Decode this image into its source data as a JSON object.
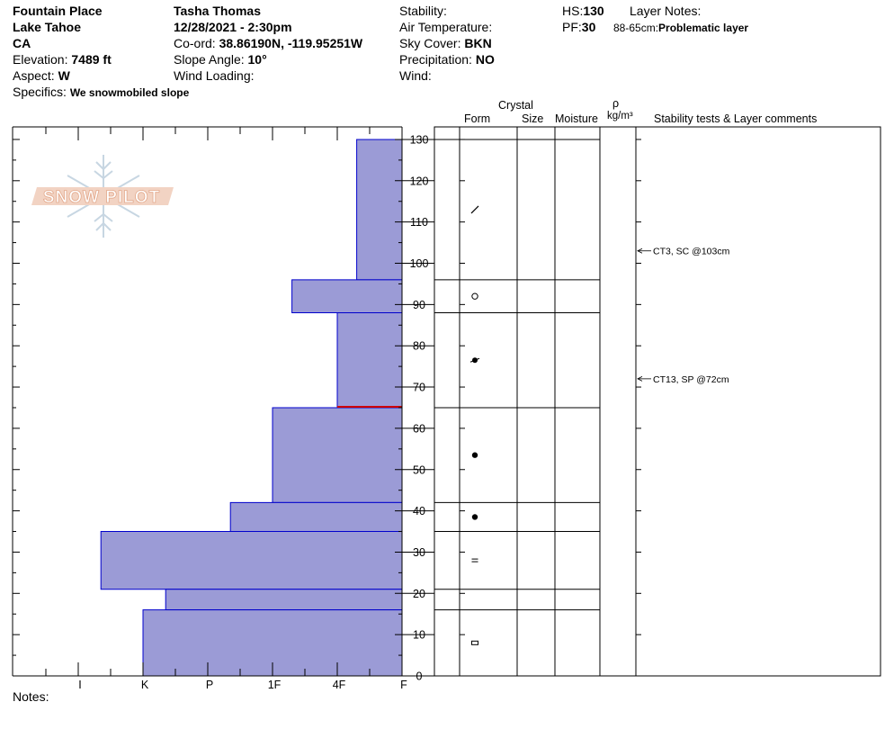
{
  "header": {
    "location": "Fountain Place",
    "region": "Lake Tahoe",
    "state": "CA",
    "elevation_label": "Elevation:",
    "elevation_value": "7489 ft",
    "aspect_label": "Aspect:",
    "aspect_value": "W",
    "specifics_label": "Specifics:",
    "specifics_value": "We snowmobiled slope",
    "observer": "Tasha Thomas",
    "datetime": "12/28/2021 - 2:30pm",
    "coord_label": "Co-ord:",
    "coord_value": "38.86190N, -119.95251W",
    "slope_label": "Slope Angle:",
    "slope_value": "10°",
    "wind_loading_label": "Wind Loading:",
    "stability_label": "Stability:",
    "air_temp_label": "Air Temperature:",
    "sky_label": "Sky Cover:",
    "sky_value": "BKN",
    "precip_label": "Precipitation:",
    "precip_value": "NO",
    "wind_label": "Wind:",
    "hs_label": "HS:",
    "hs_value": "130",
    "pf_label": "PF:",
    "pf_value": "30",
    "layer_notes_label": "Layer Notes:",
    "layer_note_range": "88-65cm:",
    "layer_note_text": "Problematic layer"
  },
  "logo_text": "SNOW PILOT",
  "notes_label": "Notes:",
  "columns": {
    "crystal": "Crystal",
    "form": "Form",
    "size": "Size",
    "moisture": "Moisture",
    "rho": "ρ",
    "density_unit": "kg/m³",
    "comments": "Stability tests & Layer comments"
  },
  "colors": {
    "hardness_fill": "#9b9bd6",
    "hardness_stroke": "#0000cc",
    "problem_line": "#cc0000"
  },
  "chart_data": {
    "type": "bar",
    "orientation": "horizontal-steps",
    "hardness_scale": [
      "I",
      "K",
      "P",
      "1F",
      "4F",
      "F"
    ],
    "y_ticks": [
      0,
      10,
      20,
      30,
      40,
      50,
      60,
      70,
      80,
      90,
      100,
      110,
      120,
      130
    ],
    "ylim": [
      0,
      130
    ],
    "layers": [
      {
        "top": 130,
        "bottom": 96,
        "hardness": 0.7
      },
      {
        "top": 96,
        "bottom": 88,
        "hardness": 1.7
      },
      {
        "top": 88,
        "bottom": 65,
        "hardness": 1.0
      },
      {
        "top": 65,
        "bottom": 42,
        "hardness": 2.0
      },
      {
        "top": 42,
        "bottom": 35,
        "hardness": 2.65
      },
      {
        "top": 35,
        "bottom": 21,
        "hardness": 4.65
      },
      {
        "top": 21,
        "bottom": 16,
        "hardness": 3.65
      },
      {
        "top": 16,
        "bottom": 0,
        "hardness": 4.0
      }
    ],
    "problem_layer_height": 65,
    "grain_forms": [
      {
        "height": 113,
        "symbol": "slash"
      },
      {
        "height": 92,
        "symbol": "ring"
      },
      {
        "height": 76.5,
        "symbol": "dot-star"
      },
      {
        "height": 53.5,
        "symbol": "dot"
      },
      {
        "height": 38.5,
        "symbol": "dot"
      },
      {
        "height": 28,
        "symbol": "dash2"
      },
      {
        "height": 8,
        "symbol": "rect"
      }
    ],
    "stability_tests": [
      {
        "height": 103,
        "text": "CT3, SC @103cm"
      },
      {
        "height": 72,
        "text": "CT13, SP @72cm"
      }
    ]
  }
}
